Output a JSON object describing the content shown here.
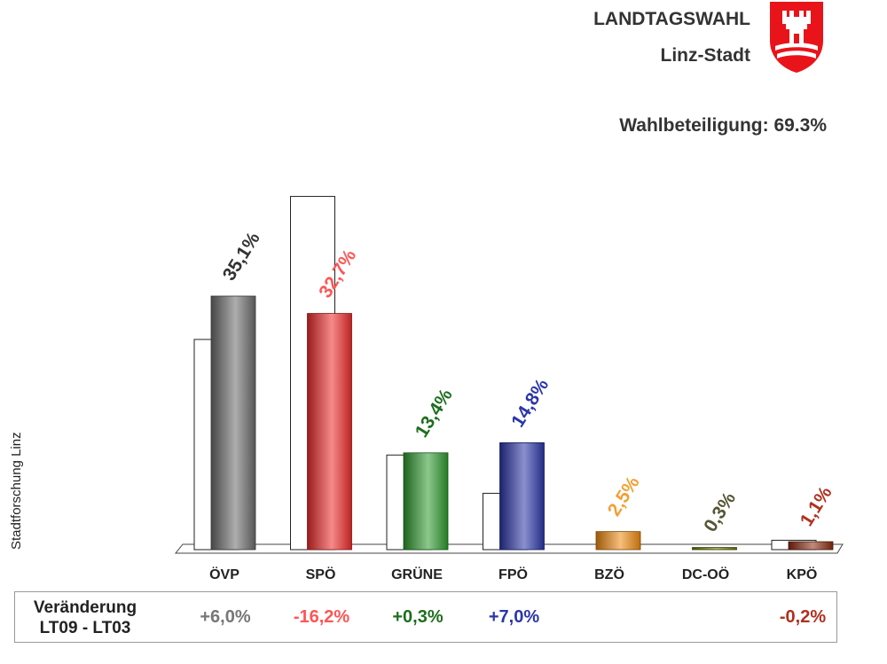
{
  "header": {
    "title": "LANDTAGSWAHL",
    "subtitle": "Linz-Stadt",
    "turnout": "Wahlbeteiligung: 69.3%",
    "crest_icon": "linz-coat-of-arms-icon",
    "crest_color": "#e8141a"
  },
  "side_label": "Stadtforschung Linz",
  "change": {
    "title_line1": "Veränderung",
    "title_line2": "LT09 - LT03",
    "values": [
      "+6,0%",
      "-16,2%",
      "+0,3%",
      "+7,0%",
      "",
      "",
      "-0,2%"
    ]
  },
  "chart_data": {
    "type": "bar",
    "categories": [
      "ÖVP",
      "SPÖ",
      "GRÜNE",
      "FPÖ",
      "BZÖ",
      "DC-OÖ",
      "KPÖ"
    ],
    "series": [
      {
        "values": [
          35.1,
          32.7,
          13.4,
          14.8,
          2.5,
          0.3,
          1.1
        ],
        "labels": [
          "35,1%",
          "32,7%",
          "13,4%",
          "14,8%",
          "2,5%",
          "0,3%",
          "1,1%"
        ]
      },
      {
        "values": [
          29.1,
          48.9,
          13.1,
          7.8,
          0,
          0,
          1.3
        ]
      }
    ],
    "colors": [
      "#6b6b6b",
      "#ee2b2b",
      "#2e9a2e",
      "#2b36a8",
      "#ee8a10",
      "#6d7a00",
      "#8a2a10"
    ],
    "label_colors": [
      "#333333",
      "#ff5555",
      "#1e6e1e",
      "#2b36a8",
      "#f2a033",
      "#555533",
      "#b03020"
    ],
    "change_colors": [
      "#777777",
      "#ff5555",
      "#1e6e1e",
      "#2b36a8",
      "#f2a033",
      "#555533",
      "#b03020"
    ],
    "ylim": [
      0,
      55
    ]
  }
}
